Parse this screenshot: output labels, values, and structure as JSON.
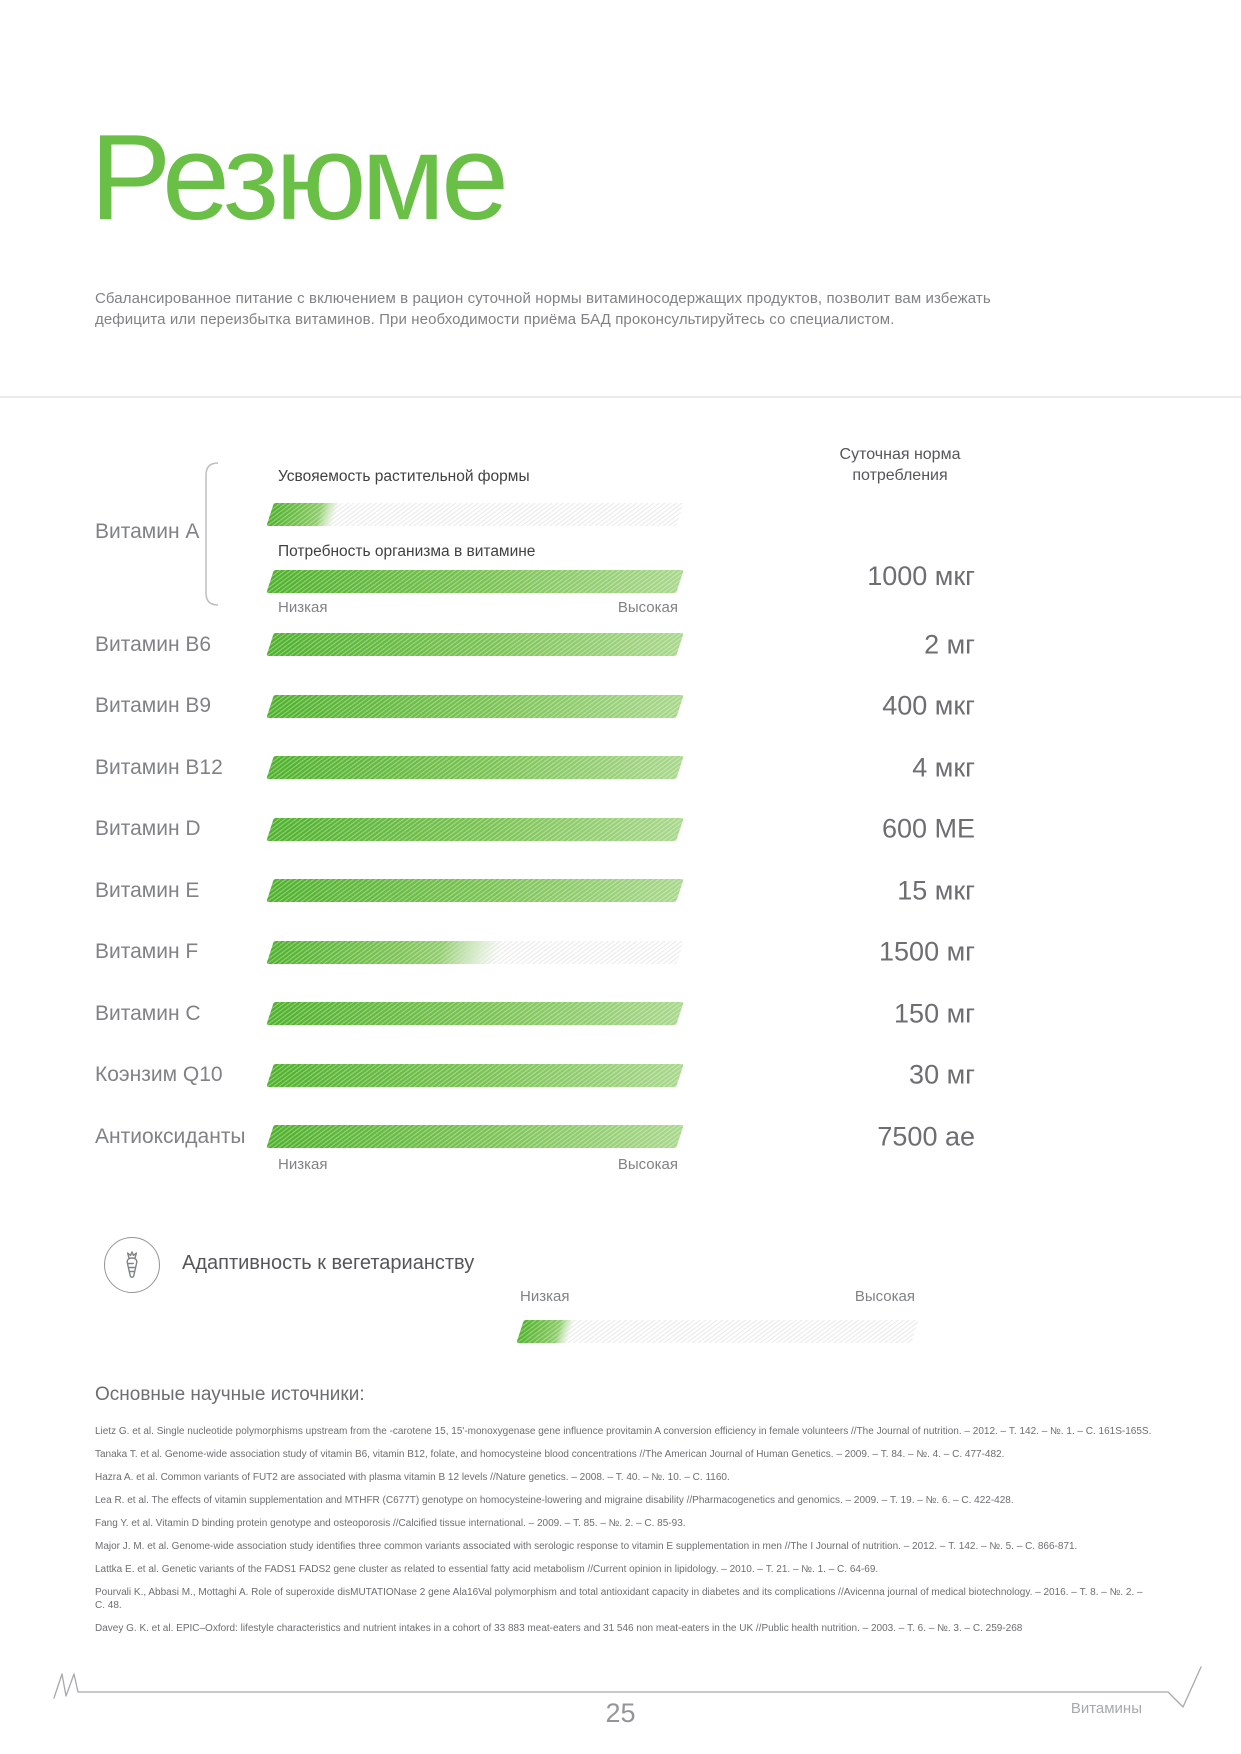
{
  "page": {
    "title": "Резюме",
    "intro": "Сбалансированное питание с включением в рацион суточной нормы витаминосодержащих продуктов, позволит вам избежать дефицита или переизбытка витаминов. При необходимости приёма БАД проконсультируйтесь со специалистом.",
    "footer": {
      "page_number": "25",
      "section": "Витамины"
    }
  },
  "chart": {
    "norm_header_line1": "Суточная норма",
    "norm_header_line2": "потребления",
    "scale": {
      "low": "Низкая",
      "high": "Высокая"
    },
    "vitamin_a": {
      "label": "Витамин А",
      "bar1_label": "Усвояемость растительной формы",
      "bar1_fill": 16,
      "bar2_label": "Потребность организма в витамине",
      "bar2_fill": 100,
      "value": "1000 мкг"
    },
    "rows": [
      {
        "label": "Витамин B6",
        "fill": 100,
        "value": "2 мг"
      },
      {
        "label": "Витамин B9",
        "fill": 100,
        "value": "400 мкг"
      },
      {
        "label": "Витамин B12",
        "fill": 100,
        "value": "4 мкг"
      },
      {
        "label": "Витамин D",
        "fill": 100,
        "value": "600 МЕ"
      },
      {
        "label": "Витамин E",
        "fill": 100,
        "value": "15 мкг"
      },
      {
        "label": "Витамин F",
        "fill": 56,
        "value": "1500 мг"
      },
      {
        "label": "Витамин C",
        "fill": 100,
        "value": "150 мг"
      },
      {
        "label": "Коэнзим Q10",
        "fill": 100,
        "value": "30 мг"
      },
      {
        "label": "Антиоксиданты",
        "fill": 100,
        "value": "7500 ае"
      }
    ]
  },
  "vegetarian": {
    "label": "Адаптивность к вегетарианству",
    "icon": "carrot-icon",
    "fill": 13,
    "scale_low": "Низкая",
    "scale_high": "Высокая"
  },
  "sources": {
    "heading": "Основные научные источники:",
    "items": [
      "Lietz G. et al. Single nucleotide polymorphisms upstream from the -carotene 15, 15'-monoxygenase gene influence provitamin A conversion efficiency in female volunteers //The Journal of nutrition. – 2012. – Т. 142. – №. 1. – С. 161S-165S.",
      "Tanaka T. et al. Genome-wide association study of vitamin B6, vitamin B12, folate, and homocysteine blood concentrations //The American Journal of Human Genetics. – 2009. – Т. 84. – №. 4. – С. 477-482.",
      "Hazra A. et al. Common variants of FUT2 are associated with plasma vitamin B 12 levels //Nature genetics. – 2008. – Т. 40. – №. 10. – С. 1160.",
      "Lea R. et al. The effects of vitamin supplementation and MTHFR (C677T) genotype on homocysteine-lowering and migraine disability //Pharmacogenetics and genomics. – 2009. – Т. 19. – №. 6. – С. 422-428.",
      "Fang Y. et al. Vitamin D binding protein genotype and osteoporosis //Calcified tissue international. – 2009. – Т. 85. – №. 2. – С. 85-93.",
      "Major J. M. et al. Genome-wide association study identifies three common variants associated with serologic response to vitamin E supplementation in men //The I Journal of nutrition. – 2012. – Т. 142. – №. 5. – С.  866-871.",
      "Lattka E. et al. Genetic variants of the FADS1 FADS2 gene cluster as related to essential fatty acid metabolism //Current opinion in lipidology. – 2010. – Т. 21. – №. 1. – С. 64-69.",
      "Pourvali K., Abbasi M., Mottaghi A. Role of superoxide disMUTATIONase 2 gene Ala16Val polymorphism and total antioxidant capacity in diabetes and its complications //Avicenna journal of medical biotechnology. – 2016. – Т. 8. – №. 2. – С. 48.",
      "Davey G. K. et al. EPIC–Oxford: lifestyle characteristics and nutrient intakes in a cohort of 33 883 meat-eaters and 31 546 non meat-eaters in the UK //Public health nutrition. – 2003. – Т. 6. – №. 3. – С. 259-268"
    ]
  },
  "chart_data": {
    "type": "bar",
    "title": "Потребность организма в витамине (шкала Низкая–Высокая, 0–100)",
    "categories": [
      "Витамин А",
      "Витамин B6",
      "Витамин B9",
      "Витамин B12",
      "Витамин D",
      "Витамин E",
      "Витамин F",
      "Витамин C",
      "Коэнзим Q10",
      "Антиоксиданты"
    ],
    "series": [
      {
        "name": "Потребность организма в витамине",
        "values": [
          100,
          100,
          100,
          100,
          100,
          100,
          56,
          100,
          100,
          100
        ]
      },
      {
        "name": "Усвояемость растительной формы (только Витамин А)",
        "values": [
          16,
          null,
          null,
          null,
          null,
          null,
          null,
          null,
          null,
          null
        ]
      },
      {
        "name": "Адаптивность к вегетарианству (общая)",
        "values": [
          13
        ]
      }
    ],
    "daily_norms": [
      "1000 мкг",
      "2 мг",
      "400 мкг",
      "4 мкг",
      "600 МЕ",
      "15 мкг",
      "1500 мг",
      "150 мг",
      "30 мг",
      "7500 ае"
    ],
    "xlabel": "",
    "ylabel": "Низкая → Высокая",
    "ylim": [
      0,
      100
    ],
    "legend_position": "none",
    "grid": false
  },
  "colors": {
    "accent_green": "#6abf47",
    "bar_green_start": "#4fb22c",
    "bar_green_end": "#a9d88c",
    "text_gray": "#808285",
    "text_dark": "#414042"
  }
}
